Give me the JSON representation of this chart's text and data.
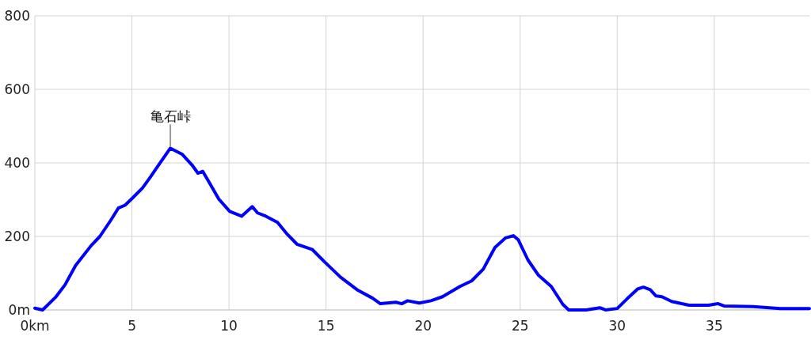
{
  "chart_data": {
    "type": "line",
    "x": [
      0,
      0.4,
      1.06,
      1.55,
      2.1,
      2.9,
      3.35,
      3.9,
      4.3,
      4.65,
      5.06,
      5.55,
      5.96,
      6.37,
      6.98,
      7.6,
      8.1,
      8.4,
      8.65,
      9.06,
      9.47,
      10.04,
      10.65,
      11.2,
      11.47,
      11.9,
      12.5,
      13,
      13.5,
      14.3,
      14.9,
      15.75,
      16.6,
      17.4,
      17.8,
      18.6,
      18.9,
      19.2,
      19.8,
      20.4,
      21,
      21.9,
      22.5,
      23.1,
      23.7,
      24.25,
      24.65,
      24.9,
      25.4,
      25.95,
      26.6,
      27.2,
      27.5,
      28.4,
      29.1,
      29.4,
      30,
      30.5,
      31.05,
      31.35,
      31.7,
      32,
      32.3,
      32.8,
      33.7,
      34.7,
      35.2,
      35.5,
      37,
      38.4,
      39.9
    ],
    "series": [
      {
        "color": "#0000ff",
        "values": [
          5,
          0,
          34,
          68,
          121,
          175,
          200,
          243,
          277,
          285,
          306,
          332,
          362,
          394,
          440,
          423,
          394,
          372,
          377,
          340,
          302,
          268,
          255,
          281,
          264,
          255,
          238,
          206,
          179,
          164,
          132,
          89,
          55,
          32,
          17,
          21,
          17,
          25,
          19,
          25,
          36,
          64,
          79,
          111,
          170,
          196,
          202,
          191,
          136,
          94,
          64,
          15,
          0,
          0,
          6,
          0,
          4,
          30,
          57,
          62,
          55,
          38,
          36,
          23,
          13,
          13,
          17,
          11,
          9,
          4,
          4
        ]
      }
    ],
    "xlim": [
      0,
      39.9
    ],
    "xticks": [
      {
        "value": 0,
        "label": "0km"
      },
      5,
      10,
      15,
      20,
      25,
      30,
      35
    ],
    "ylim": [
      0,
      800
    ],
    "yticks": [
      {
        "value": 0,
        "label": "0m"
      },
      200,
      400,
      600,
      800
    ],
    "grid": true,
    "line_style": "solid",
    "marker": "none",
    "annotations": [
      {
        "text": "亀石峠",
        "x": 6.98,
        "y": 440
      }
    ]
  }
}
